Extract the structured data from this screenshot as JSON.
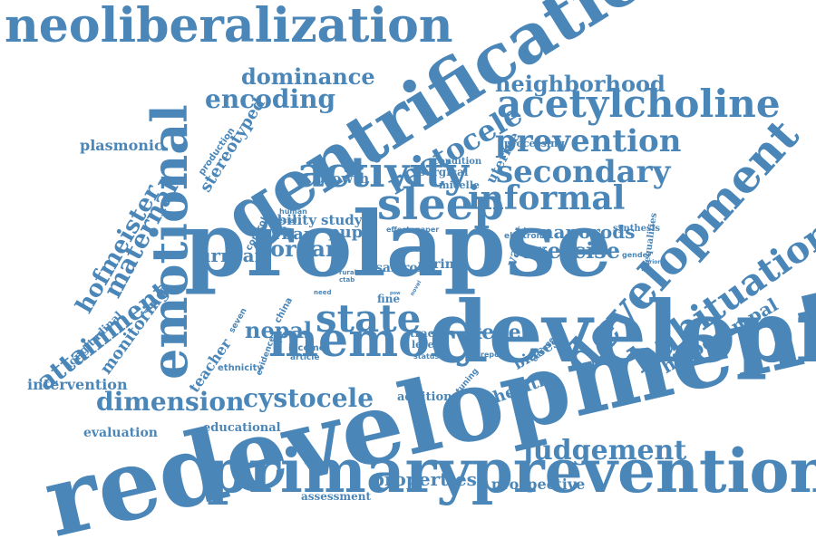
{
  "style": {
    "word_color": "#4a86b8",
    "background": "#ffffff"
  },
  "words": {
    "redevelopment": "redevelopment",
    "primaryprevention": "primaryprevention",
    "prolapse": "prolapse",
    "development_big": "development",
    "gentrification": "gentrification",
    "neoliberalization": "neoliberalization",
    "emotional": "emotional",
    "memory": "memory",
    "acetylcholine": "acetylcholine",
    "activity": "activity",
    "sleep": "sleep",
    "state": "state",
    "habituation": "habituation",
    "development_right": "development",
    "prevention": "prevention",
    "secondary": "secondary",
    "informal": "informal",
    "judgement": "judgement",
    "rectocele": "rectocele",
    "encoding": "encoding",
    "dominance": "dominance",
    "neighborhood": "neighborhood",
    "cystocele": "cystocele",
    "dimension": "dimension",
    "attainment": "attainment",
    "hofmeister": "hofmeister",
    "maternal": "maternal",
    "monitoring": "monitoring",
    "intervention": "intervention",
    "hippocampal": "hippocampal",
    "exercise": "exercise",
    "nanorods": "nanorods",
    "organ": "organ",
    "urrban": "urrban",
    "urban": "urban",
    "pupil": "pupil",
    "nepal": "nepal",
    "kegel": "kegel",
    "properties": "properties",
    "prospective": "prospective",
    "health": "health",
    "biases": "biases",
    "plasmonic": "plasmonic",
    "stereotyped": "stereotyped",
    "growth": "growth",
    "study": "study",
    "ability": "ability",
    "evaluation": "evaluation",
    "educational": "educational",
    "assessment": "assessment",
    "teacher": "teacher",
    "longitudinal": "longitudinal",
    "uterine": "uterine",
    "vault": "vault",
    "processing": "processing",
    "condition": "condition",
    "surgical": "surgical",
    "micelle": "micelle",
    "synthesis": "synthesis",
    "inequalities": "inequalities",
    "addition": "addition",
    "trace": "trace",
    "level": "level",
    "salt": "salt",
    "role": "role",
    "ring": "ring",
    "fine": "fine",
    "production": "production",
    "control": "control",
    "human": "human",
    "special": "special",
    "effect": "effect",
    "paper": "paper",
    "electron": "electron",
    "gender": "gender",
    "china": "china",
    "seven": "seven",
    "income": "income",
    "article": "article",
    "status": "status",
    "report": "report",
    "ethnicity": "ethnicity",
    "evidence": "evidence",
    "tuning": "tuning",
    "change": "change",
    "need": "need",
    "rural": "rural",
    "ctab": "ctab",
    "novel": "novel",
    "prior": "prior",
    "pow": "pow"
  }
}
